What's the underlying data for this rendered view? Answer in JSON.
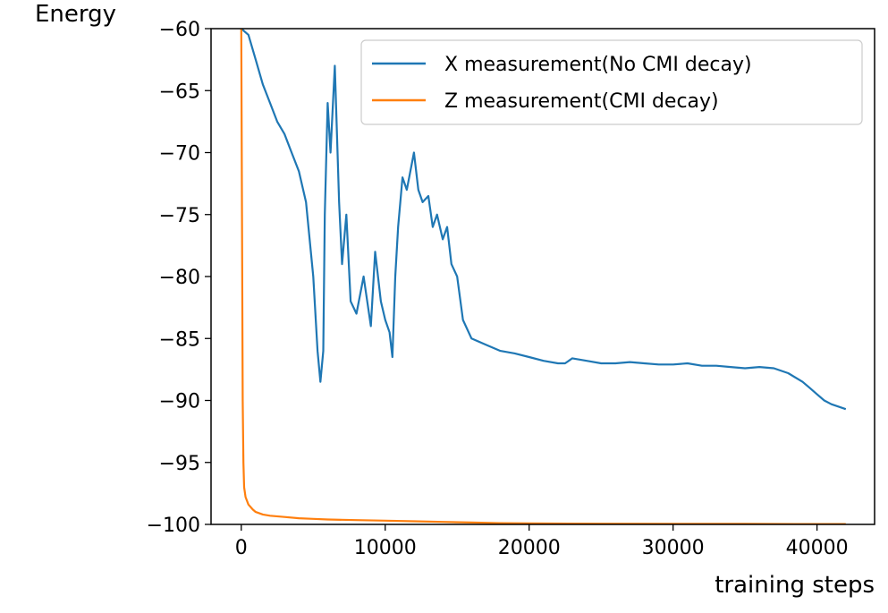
{
  "chart_data": {
    "type": "line",
    "xlabel": "training steps",
    "ylabel": "Energy",
    "xlim": [
      -2100,
      44000
    ],
    "ylim": [
      -100,
      -60
    ],
    "xticks": [
      0,
      10000,
      20000,
      30000,
      40000
    ],
    "xtick_labels": [
      "0",
      "10000",
      "20000",
      "30000",
      "40000"
    ],
    "yticks": [
      -60,
      -65,
      -70,
      -75,
      -80,
      -85,
      -90,
      -95,
      -100
    ],
    "ytick_labels": [
      "−60",
      "−65",
      "−70",
      "−75",
      "−80",
      "−85",
      "−90",
      "−95",
      "−100"
    ],
    "grid": false,
    "legend_position": "upper-right",
    "series": [
      {
        "name": "X measurement(No CMI decay)",
        "color": "#1f77b4",
        "x": [
          0,
          500,
          1000,
          1500,
          2000,
          2500,
          3000,
          3500,
          4000,
          4500,
          5000,
          5300,
          5500,
          5700,
          5800,
          6000,
          6200,
          6500,
          6800,
          7000,
          7300,
          7600,
          8000,
          8500,
          9000,
          9300,
          9500,
          9700,
          10000,
          10300,
          10500,
          10700,
          10900,
          11200,
          11500,
          12000,
          12300,
          12600,
          13000,
          13300,
          13600,
          14000,
          14300,
          14600,
          15000,
          15400,
          16000,
          17000,
          18000,
          19000,
          20000,
          21000,
          22000,
          22500,
          23000,
          24000,
          25000,
          26000,
          27000,
          28000,
          29000,
          30000,
          31000,
          32000,
          33000,
          34000,
          35000,
          36000,
          37000,
          38000,
          39000,
          39500,
          40000,
          40500,
          41000,
          41500,
          42000
        ],
        "y": [
          -60,
          -60.5,
          -62.5,
          -64.5,
          -66,
          -67.5,
          -68.5,
          -70,
          -71.5,
          -74,
          -80,
          -86,
          -88.5,
          -86,
          -75,
          -66,
          -70,
          -63,
          -74,
          -79,
          -75,
          -82,
          -83,
          -80,
          -84,
          -78,
          -80,
          -82,
          -83.5,
          -84.5,
          -86.5,
          -80,
          -76,
          -72,
          -73,
          -70,
          -73,
          -74,
          -73.5,
          -76,
          -75,
          -77,
          -76,
          -79,
          -80,
          -83.5,
          -85,
          -85.5,
          -86,
          -86.2,
          -86.5,
          -86.8,
          -87,
          -87,
          -86.6,
          -86.8,
          -87,
          -87,
          -86.9,
          -87,
          -87.1,
          -87.1,
          -87,
          -87.2,
          -87.2,
          -87.3,
          -87.4,
          -87.3,
          -87.4,
          -87.8,
          -88.5,
          -89,
          -89.5,
          -90,
          -90.3,
          -90.5,
          -90.7
        ]
      },
      {
        "name": "Z measurement(CMI decay)",
        "color": "#ff7f0e",
        "x": [
          0,
          50,
          100,
          150,
          200,
          300,
          500,
          800,
          1000,
          1500,
          2000,
          3000,
          4000,
          5000,
          6000,
          8000,
          10000,
          12000,
          14000,
          16000,
          18000,
          20000,
          25000,
          30000,
          35000,
          40000,
          42000
        ],
        "y": [
          -60,
          -75,
          -90,
          -95,
          -97,
          -97.8,
          -98.4,
          -98.8,
          -99,
          -99.2,
          -99.3,
          -99.4,
          -99.5,
          -99.55,
          -99.6,
          -99.65,
          -99.7,
          -99.75,
          -99.8,
          -99.85,
          -99.9,
          -99.92,
          -99.94,
          -99.95,
          -99.96,
          -99.97,
          -99.97
        ]
      }
    ]
  }
}
